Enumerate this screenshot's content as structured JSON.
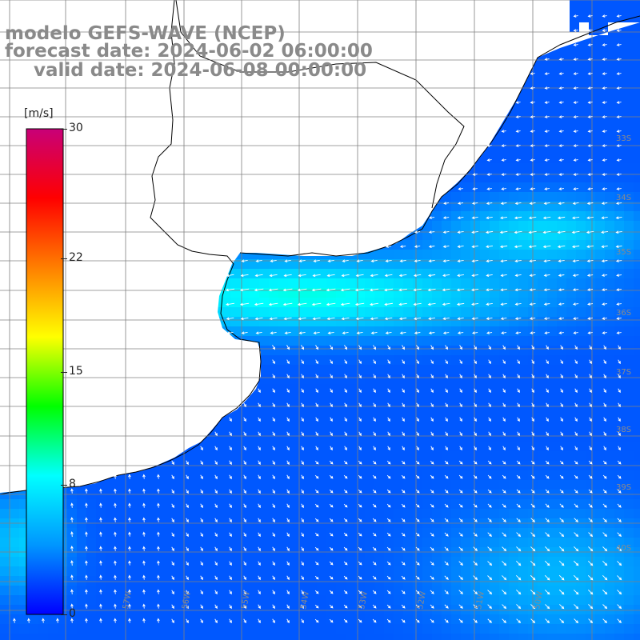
{
  "title": {
    "line1": "modelo GEFS-WAVE (NCEP)",
    "line2": "forecast date: 2024-06-02 06:00:00",
    "line3": "valid date: 2024-06-08 00:00:00"
  },
  "colorbar": {
    "unit": "[m/s]",
    "min": 0,
    "max": 30,
    "ticks": [
      {
        "value": 30,
        "label": "30"
      },
      {
        "value": 22,
        "label": "22"
      },
      {
        "value": 15,
        "label": "15"
      },
      {
        "value": 8,
        "label": "8"
      },
      {
        "value": 0,
        "label": "0"
      }
    ],
    "colors": [
      "#0000ff",
      "#0096ff",
      "#00ffff",
      "#00ff00",
      "#ffff00",
      "#ff7f00",
      "#ff0000",
      "#c80078"
    ]
  },
  "map": {
    "variable": "wind speed and direction",
    "land_color": "#ffffff",
    "coast_color": "#000000",
    "grid_color": "#808080",
    "lat_labels": [
      "33S",
      "34S",
      "35S",
      "36S",
      "37S",
      "38S",
      "39S",
      "40S"
    ],
    "lon_labels": [
      "57W",
      "56W",
      "55W",
      "54W",
      "53W",
      "52W",
      "51W",
      "50W"
    ]
  }
}
